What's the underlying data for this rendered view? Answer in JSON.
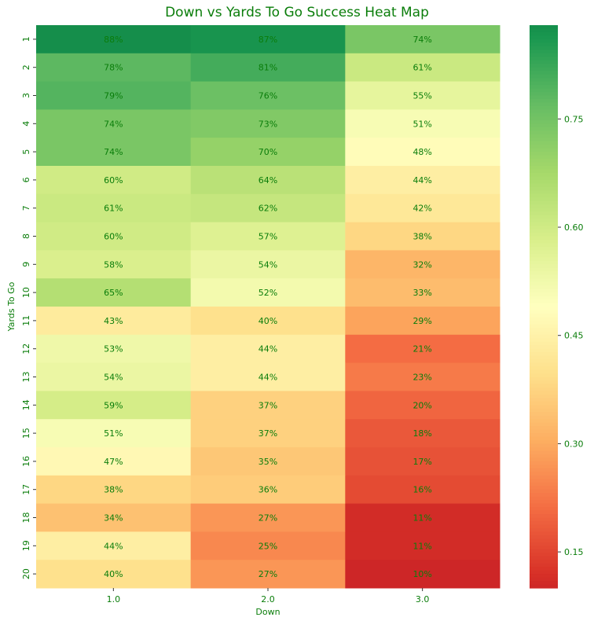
{
  "chart_data": {
    "type": "heatmap",
    "title": "Down vs Yards To Go Success Heat Map",
    "xlabel": "Down",
    "ylabel": "Yards To Go",
    "x_categories": [
      "1.0",
      "2.0",
      "3.0"
    ],
    "y_categories": [
      "1",
      "2",
      "3",
      "4",
      "5",
      "6",
      "7",
      "8",
      "9",
      "10",
      "11",
      "12",
      "13",
      "14",
      "15",
      "16",
      "17",
      "18",
      "19",
      "20"
    ],
    "values": [
      [
        0.88,
        0.87,
        0.74
      ],
      [
        0.78,
        0.81,
        0.61
      ],
      [
        0.79,
        0.76,
        0.55
      ],
      [
        0.74,
        0.73,
        0.51
      ],
      [
        0.74,
        0.7,
        0.48
      ],
      [
        0.6,
        0.64,
        0.44
      ],
      [
        0.61,
        0.62,
        0.42
      ],
      [
        0.6,
        0.57,
        0.38
      ],
      [
        0.58,
        0.54,
        0.32
      ],
      [
        0.65,
        0.52,
        0.33
      ],
      [
        0.43,
        0.4,
        0.29
      ],
      [
        0.53,
        0.44,
        0.21
      ],
      [
        0.54,
        0.44,
        0.23
      ],
      [
        0.59,
        0.37,
        0.2
      ],
      [
        0.51,
        0.37,
        0.18
      ],
      [
        0.47,
        0.35,
        0.17
      ],
      [
        0.38,
        0.36,
        0.16
      ],
      [
        0.34,
        0.27,
        0.11
      ],
      [
        0.44,
        0.25,
        0.11
      ],
      [
        0.4,
        0.27,
        0.1
      ]
    ],
    "labels": [
      [
        "88%",
        "87%",
        "74%"
      ],
      [
        "78%",
        "81%",
        "61%"
      ],
      [
        "79%",
        "76%",
        "55%"
      ],
      [
        "74%",
        "73%",
        "51%"
      ],
      [
        "74%",
        "70%",
        "48%"
      ],
      [
        "60%",
        "64%",
        "44%"
      ],
      [
        "61%",
        "62%",
        "42%"
      ],
      [
        "60%",
        "57%",
        "38%"
      ],
      [
        "58%",
        "54%",
        "32%"
      ],
      [
        "65%",
        "52%",
        "33%"
      ],
      [
        "43%",
        "40%",
        "29%"
      ],
      [
        "53%",
        "44%",
        "21%"
      ],
      [
        "54%",
        "44%",
        "23%"
      ],
      [
        "59%",
        "37%",
        "20%"
      ],
      [
        "51%",
        "37%",
        "18%"
      ],
      [
        "47%",
        "35%",
        "17%"
      ],
      [
        "38%",
        "36%",
        "16%"
      ],
      [
        "34%",
        "27%",
        "11%"
      ],
      [
        "44%",
        "25%",
        "11%"
      ],
      [
        "40%",
        "27%",
        "10%"
      ]
    ],
    "colormap": "RdYlGn",
    "vmin": 0.1,
    "vmax": 0.88,
    "colorbar_ticks": [
      0.15,
      0.3,
      0.45,
      0.6,
      0.75
    ],
    "colorbar_tick_labels": [
      "0.15",
      "0.30",
      "0.45",
      "0.60",
      "0.75"
    ],
    "text_color": "#0a7d0a"
  }
}
